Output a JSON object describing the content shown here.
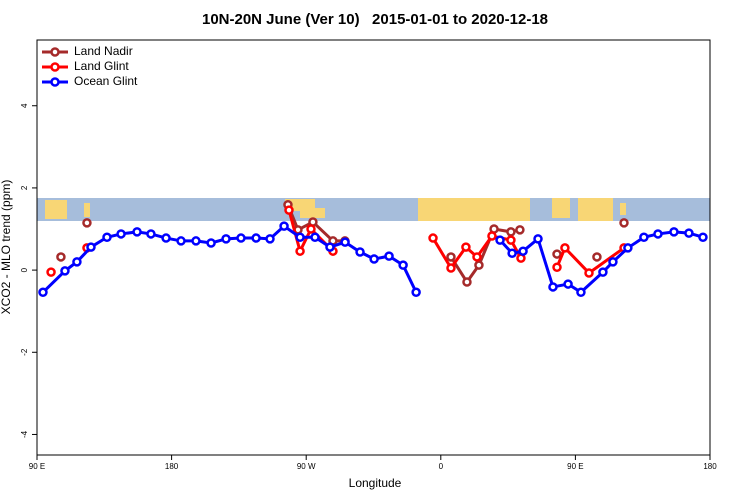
{
  "chart_data": {
    "type": "line",
    "title": "10N-20N June (Ver 10)   2015-01-01 to 2020-12-18",
    "x_label": "Longitude",
    "y_label": "XCO2 - MLO trend (ppm)",
    "xlim": [
      90,
      540
    ],
    "xticks": [
      {
        "value": 90,
        "label": "90 E"
      },
      180,
      {
        "value": 270,
        "label": "90 W"
      },
      {
        "value": 360,
        "label": "0"
      },
      {
        "value": 450,
        "label": "90 E"
      },
      {
        "value": 540,
        "label": "180"
      }
    ],
    "ylim": [
      -4.5,
      5.6
    ],
    "yticks": [
      -4,
      -2,
      0,
      2,
      4
    ],
    "legend": "top-left",
    "series": [
      {
        "name": "Land Nadir",
        "color": "#a52a2a",
        "x": [
          106,
          null,
          123.4,
          null,
          257.8,
          264.5,
          274.5,
          287.9,
          295.9,
          null,
          366.8,
          377.5,
          385.5,
          395.6,
          406.9,
          412.9,
          null,
          437.7,
          null,
          464.4,
          null,
          482.5
        ],
        "values": [
          0.32,
          null,
          1.15,
          null,
          1.59,
          0.98,
          1.17,
          0.71,
          0.71,
          null,
          0.32,
          -0.29,
          0.12,
          1.0,
          0.93,
          0.98,
          null,
          0.39,
          null,
          0.32,
          null,
          1.15
        ]
      },
      {
        "name": "Land Glint",
        "color": "#ff0000",
        "x": [
          99.4,
          null,
          123.4,
          null,
          258.5,
          265.9,
          273.2,
          287.9,
          null,
          354.8,
          366.8,
          376.8,
          384.2,
          394.2,
          406.9,
          413.6,
          null,
          437.7,
          443,
          459.1,
          482.5
        ],
        "values": [
          -0.05,
          null,
          0.54,
          null,
          1.46,
          0.46,
          1.0,
          0.46,
          null,
          0.78,
          0.05,
          0.56,
          0.32,
          0.83,
          0.73,
          0.29,
          null,
          0.07,
          0.54,
          -0.07,
          0.54
        ]
      },
      {
        "name": "Ocean Glint",
        "color": "#0000ff",
        "x": [
          94,
          108.7,
          116.7,
          126.1,
          136.8,
          146.2,
          156.9,
          166.2,
          176.3,
          186.3,
          196.3,
          206.4,
          216.4,
          226.4,
          236.5,
          245.8,
          255.2,
          265.9,
          275.9,
          285.9,
          296,
          306,
          315.4,
          325.4,
          334.8,
          343.5,
          null,
          399.6,
          407.7,
          415,
          425,
          435,
          445.1,
          453.7,
          468.4,
          475.1,
          485.1,
          495.8,
          505.2,
          515.9,
          525.9,
          535.3
        ],
        "values": [
          -0.54,
          -0.02,
          0.2,
          0.56,
          0.8,
          0.88,
          0.93,
          0.88,
          0.78,
          0.71,
          0.71,
          0.66,
          0.76,
          0.78,
          0.78,
          0.76,
          1.07,
          0.8,
          0.8,
          0.56,
          0.68,
          0.44,
          0.27,
          0.34,
          0.12,
          -0.54,
          null,
          0.73,
          0.41,
          0.46,
          0.76,
          -0.41,
          -0.34,
          -0.54,
          -0.05,
          0.2,
          0.54,
          0.8,
          0.88,
          0.93,
          0.9,
          0.8
        ]
      }
    ]
  }
}
